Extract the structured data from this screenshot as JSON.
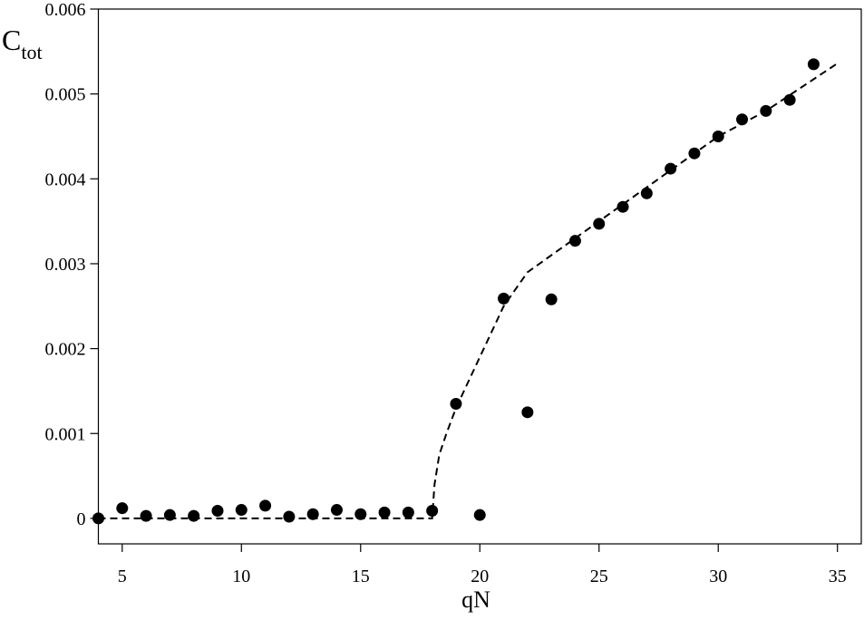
{
  "chart_data": {
    "type": "scatter",
    "xlabel": "qN",
    "ylabel": "C",
    "ylabel_sub": "tot",
    "xlim": [
      4,
      36
    ],
    "ylim": [
      -0.0003,
      0.006
    ],
    "xticks": [
      5,
      10,
      15,
      20,
      25,
      30,
      35
    ],
    "yticks": [
      0,
      0.001,
      0.002,
      0.003,
      0.004,
      0.005,
      0.006
    ],
    "series": [
      {
        "type": "scatter",
        "color": "#000000",
        "x": [
          4,
          5,
          6,
          7,
          8,
          9,
          10,
          11,
          12,
          13,
          14,
          15,
          16,
          17,
          18,
          19,
          20,
          21,
          22,
          23,
          24,
          25,
          26,
          27,
          28,
          29,
          30,
          31,
          32,
          33,
          34
        ],
        "values": [
          0,
          0.00012,
          3e-05,
          4e-05,
          3e-05,
          9e-05,
          0.0001,
          0.00015,
          2e-05,
          5e-05,
          0.0001,
          5e-05,
          7e-05,
          7e-05,
          9e-05,
          0.00135,
          4e-05,
          0.00259,
          0.00125,
          0.00258,
          0.00327,
          0.00347,
          0.00367,
          0.00383,
          0.00412,
          0.0043,
          0.0045,
          0.0047,
          0.0048,
          0.00493,
          0.00535
        ]
      },
      {
        "type": "line",
        "color": "#000000",
        "style": "dashed",
        "x": [
          4,
          18,
          18.1,
          18.3,
          18.6,
          19,
          20,
          21,
          22,
          24,
          26,
          28,
          30,
          32,
          35
        ],
        "values": [
          0,
          0,
          0.0004,
          0.00075,
          0.001,
          0.0013,
          0.0019,
          0.0025,
          0.0029,
          0.0033,
          0.0037,
          0.0041,
          0.0045,
          0.0048,
          0.00536
        ]
      }
    ]
  }
}
